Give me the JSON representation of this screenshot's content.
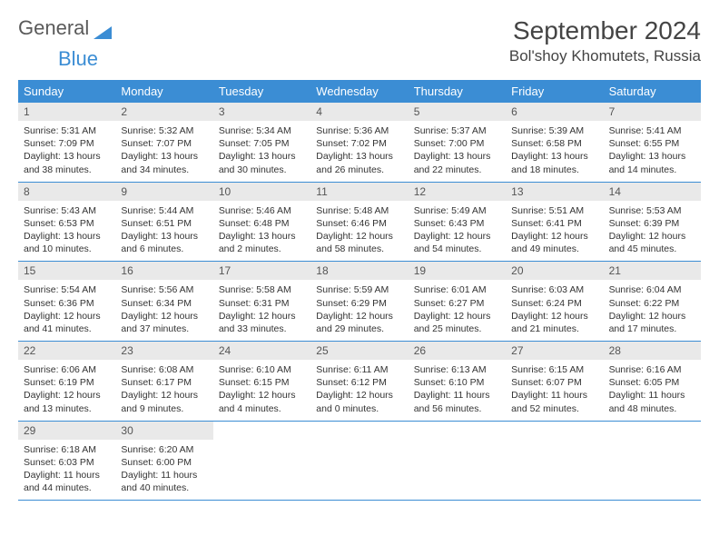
{
  "logo": {
    "text1": "General",
    "text2": "Blue"
  },
  "header": {
    "title": "September 2024",
    "location": "Bol'shoy Khomutets, Russia"
  },
  "weekdays": [
    "Sunday",
    "Monday",
    "Tuesday",
    "Wednesday",
    "Thursday",
    "Friday",
    "Saturday"
  ],
  "colors": {
    "accent": "#3b8dd4",
    "dayBar": "#e9e9e9",
    "text": "#333333",
    "logoGray": "#5a5a5a"
  },
  "days": [
    {
      "n": 1,
      "sunrise": "5:31 AM",
      "sunset": "7:09 PM",
      "daylight": "13 hours and 38 minutes."
    },
    {
      "n": 2,
      "sunrise": "5:32 AM",
      "sunset": "7:07 PM",
      "daylight": "13 hours and 34 minutes."
    },
    {
      "n": 3,
      "sunrise": "5:34 AM",
      "sunset": "7:05 PM",
      "daylight": "13 hours and 30 minutes."
    },
    {
      "n": 4,
      "sunrise": "5:36 AM",
      "sunset": "7:02 PM",
      "daylight": "13 hours and 26 minutes."
    },
    {
      "n": 5,
      "sunrise": "5:37 AM",
      "sunset": "7:00 PM",
      "daylight": "13 hours and 22 minutes."
    },
    {
      "n": 6,
      "sunrise": "5:39 AM",
      "sunset": "6:58 PM",
      "daylight": "13 hours and 18 minutes."
    },
    {
      "n": 7,
      "sunrise": "5:41 AM",
      "sunset": "6:55 PM",
      "daylight": "13 hours and 14 minutes."
    },
    {
      "n": 8,
      "sunrise": "5:43 AM",
      "sunset": "6:53 PM",
      "daylight": "13 hours and 10 minutes."
    },
    {
      "n": 9,
      "sunrise": "5:44 AM",
      "sunset": "6:51 PM",
      "daylight": "13 hours and 6 minutes."
    },
    {
      "n": 10,
      "sunrise": "5:46 AM",
      "sunset": "6:48 PM",
      "daylight": "13 hours and 2 minutes."
    },
    {
      "n": 11,
      "sunrise": "5:48 AM",
      "sunset": "6:46 PM",
      "daylight": "12 hours and 58 minutes."
    },
    {
      "n": 12,
      "sunrise": "5:49 AM",
      "sunset": "6:43 PM",
      "daylight": "12 hours and 54 minutes."
    },
    {
      "n": 13,
      "sunrise": "5:51 AM",
      "sunset": "6:41 PM",
      "daylight": "12 hours and 49 minutes."
    },
    {
      "n": 14,
      "sunrise": "5:53 AM",
      "sunset": "6:39 PM",
      "daylight": "12 hours and 45 minutes."
    },
    {
      "n": 15,
      "sunrise": "5:54 AM",
      "sunset": "6:36 PM",
      "daylight": "12 hours and 41 minutes."
    },
    {
      "n": 16,
      "sunrise": "5:56 AM",
      "sunset": "6:34 PM",
      "daylight": "12 hours and 37 minutes."
    },
    {
      "n": 17,
      "sunrise": "5:58 AM",
      "sunset": "6:31 PM",
      "daylight": "12 hours and 33 minutes."
    },
    {
      "n": 18,
      "sunrise": "5:59 AM",
      "sunset": "6:29 PM",
      "daylight": "12 hours and 29 minutes."
    },
    {
      "n": 19,
      "sunrise": "6:01 AM",
      "sunset": "6:27 PM",
      "daylight": "12 hours and 25 minutes."
    },
    {
      "n": 20,
      "sunrise": "6:03 AM",
      "sunset": "6:24 PM",
      "daylight": "12 hours and 21 minutes."
    },
    {
      "n": 21,
      "sunrise": "6:04 AM",
      "sunset": "6:22 PM",
      "daylight": "12 hours and 17 minutes."
    },
    {
      "n": 22,
      "sunrise": "6:06 AM",
      "sunset": "6:19 PM",
      "daylight": "12 hours and 13 minutes."
    },
    {
      "n": 23,
      "sunrise": "6:08 AM",
      "sunset": "6:17 PM",
      "daylight": "12 hours and 9 minutes."
    },
    {
      "n": 24,
      "sunrise": "6:10 AM",
      "sunset": "6:15 PM",
      "daylight": "12 hours and 4 minutes."
    },
    {
      "n": 25,
      "sunrise": "6:11 AM",
      "sunset": "6:12 PM",
      "daylight": "12 hours and 0 minutes."
    },
    {
      "n": 26,
      "sunrise": "6:13 AM",
      "sunset": "6:10 PM",
      "daylight": "11 hours and 56 minutes."
    },
    {
      "n": 27,
      "sunrise": "6:15 AM",
      "sunset": "6:07 PM",
      "daylight": "11 hours and 52 minutes."
    },
    {
      "n": 28,
      "sunrise": "6:16 AM",
      "sunset": "6:05 PM",
      "daylight": "11 hours and 48 minutes."
    },
    {
      "n": 29,
      "sunrise": "6:18 AM",
      "sunset": "6:03 PM",
      "daylight": "11 hours and 44 minutes."
    },
    {
      "n": 30,
      "sunrise": "6:20 AM",
      "sunset": "6:00 PM",
      "daylight": "11 hours and 40 minutes."
    }
  ],
  "labels": {
    "sunrise": "Sunrise:",
    "sunset": "Sunset:",
    "daylight": "Daylight:"
  },
  "layout": {
    "firstDayOffset": 0,
    "totalCells": 35
  }
}
